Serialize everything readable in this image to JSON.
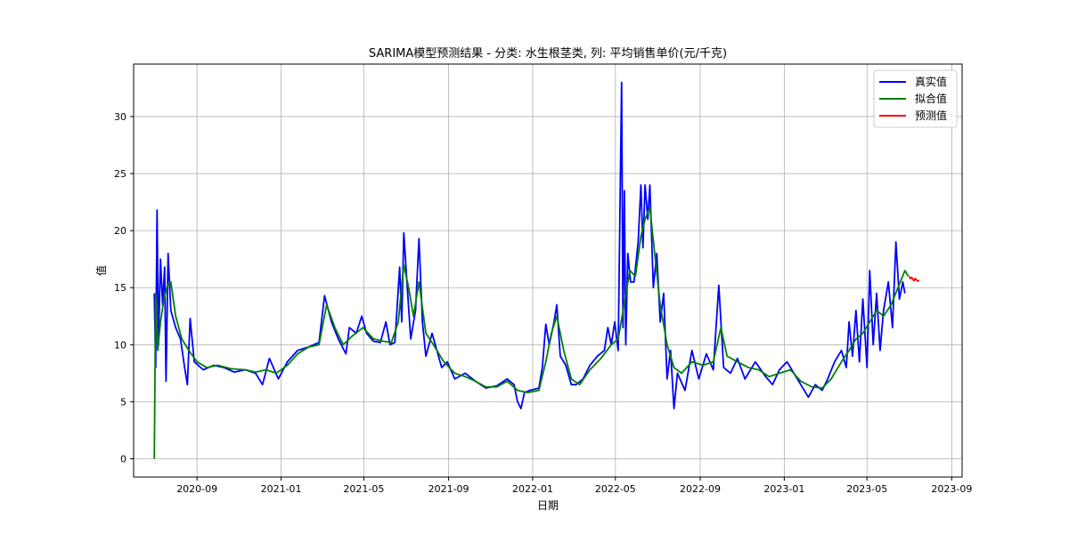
{
  "chart_data": {
    "type": "line",
    "title": "SARIMA模型预测结果 - 分类: 水生根茎类, 列: 平均销售单价(元/千克)",
    "xlabel": "日期",
    "ylabel": "值",
    "x_range": [
      "2020-06-01",
      "2023-09-16"
    ],
    "ylim": [
      -1.6,
      34.6
    ],
    "grid": true,
    "legend_position": "top-right",
    "x_ticks": [
      "2020-09",
      "2021-01",
      "2021-05",
      "2021-09",
      "2022-01",
      "2022-05",
      "2022-09",
      "2023-01",
      "2023-05",
      "2023-09"
    ],
    "y_ticks": [
      0,
      5,
      10,
      15,
      20,
      25,
      30
    ],
    "series": [
      {
        "name": "真实值",
        "color": "#0000ff",
        "points": [
          [
            "2020-07-01",
            14.5
          ],
          [
            "2020-07-03",
            8.0
          ],
          [
            "2020-07-05",
            21.8
          ],
          [
            "2020-07-07",
            10.0
          ],
          [
            "2020-07-10",
            17.5
          ],
          [
            "2020-07-13",
            13.5
          ],
          [
            "2020-07-16",
            16.8
          ],
          [
            "2020-07-18",
            6.8
          ],
          [
            "2020-07-21",
            18.0
          ],
          [
            "2020-07-25",
            13.0
          ],
          [
            "2020-08-01",
            11.5
          ],
          [
            "2020-08-08",
            10.5
          ],
          [
            "2020-08-14",
            8.0
          ],
          [
            "2020-08-18",
            6.5
          ],
          [
            "2020-08-22",
            12.3
          ],
          [
            "2020-08-28",
            8.5
          ],
          [
            "2020-09-10",
            7.8
          ],
          [
            "2020-09-25",
            8.2
          ],
          [
            "2020-10-10",
            8.0
          ],
          [
            "2020-10-25",
            7.6
          ],
          [
            "2020-11-10",
            7.8
          ],
          [
            "2020-11-25",
            7.5
          ],
          [
            "2020-12-05",
            6.5
          ],
          [
            "2020-12-15",
            8.8
          ],
          [
            "2020-12-28",
            7.0
          ],
          [
            "2021-01-10",
            8.5
          ],
          [
            "2021-01-25",
            9.5
          ],
          [
            "2021-02-10",
            9.8
          ],
          [
            "2021-02-25",
            10.2
          ],
          [
            "2021-03-05",
            14.3
          ],
          [
            "2021-03-15",
            12.0
          ],
          [
            "2021-03-25",
            10.5
          ],
          [
            "2021-04-05",
            9.2
          ],
          [
            "2021-04-10",
            11.5
          ],
          [
            "2021-04-20",
            11.0
          ],
          [
            "2021-04-28",
            12.5
          ],
          [
            "2021-05-05",
            11.0
          ],
          [
            "2021-05-15",
            10.3
          ],
          [
            "2021-05-25",
            10.2
          ],
          [
            "2021-06-02",
            12.0
          ],
          [
            "2021-06-08",
            10.0
          ],
          [
            "2021-06-15",
            10.2
          ],
          [
            "2021-06-22",
            16.8
          ],
          [
            "2021-06-25",
            12.0
          ],
          [
            "2021-06-28",
            19.8
          ],
          [
            "2021-07-02",
            16.0
          ],
          [
            "2021-07-08",
            10.5
          ],
          [
            "2021-07-15",
            13.0
          ],
          [
            "2021-07-20",
            19.3
          ],
          [
            "2021-07-25",
            12.0
          ],
          [
            "2021-07-30",
            9.0
          ],
          [
            "2021-08-08",
            11.0
          ],
          [
            "2021-08-15",
            9.5
          ],
          [
            "2021-08-22",
            8.0
          ],
          [
            "2021-08-30",
            8.5
          ],
          [
            "2021-09-10",
            7.0
          ],
          [
            "2021-09-25",
            7.5
          ],
          [
            "2021-10-10",
            6.8
          ],
          [
            "2021-10-25",
            6.2
          ],
          [
            "2021-11-10",
            6.4
          ],
          [
            "2021-11-25",
            7.0
          ],
          [
            "2021-12-05",
            6.5
          ],
          [
            "2021-12-10",
            5.0
          ],
          [
            "2021-12-15",
            4.4
          ],
          [
            "2021-12-20",
            5.8
          ],
          [
            "2021-12-28",
            6.0
          ],
          [
            "2022-01-10",
            6.2
          ],
          [
            "2022-01-15",
            8.0
          ],
          [
            "2022-01-20",
            11.8
          ],
          [
            "2022-01-25",
            10.0
          ],
          [
            "2022-02-01",
            12.0
          ],
          [
            "2022-02-05",
            13.5
          ],
          [
            "2022-02-10",
            9.0
          ],
          [
            "2022-02-18",
            8.2
          ],
          [
            "2022-02-26",
            6.5
          ],
          [
            "2022-03-05",
            6.5
          ],
          [
            "2022-03-15",
            7.0
          ],
          [
            "2022-03-25",
            8.2
          ],
          [
            "2022-04-05",
            9.0
          ],
          [
            "2022-04-15",
            9.5
          ],
          [
            "2022-04-20",
            11.5
          ],
          [
            "2022-04-25",
            10.0
          ],
          [
            "2022-04-30",
            12.0
          ],
          [
            "2022-05-05",
            9.5
          ],
          [
            "2022-05-10",
            33.0
          ],
          [
            "2022-05-12",
            11.5
          ],
          [
            "2022-05-14",
            23.5
          ],
          [
            "2022-05-16",
            10.0
          ],
          [
            "2022-05-19",
            18.0
          ],
          [
            "2022-05-23",
            15.5
          ],
          [
            "2022-05-28",
            15.5
          ],
          [
            "2022-06-03",
            19.0
          ],
          [
            "2022-06-07",
            24.0
          ],
          [
            "2022-06-10",
            18.5
          ],
          [
            "2022-06-13",
            24.0
          ],
          [
            "2022-06-17",
            21.0
          ],
          [
            "2022-06-20",
            24.0
          ],
          [
            "2022-06-25",
            15.0
          ],
          [
            "2022-06-30",
            18.0
          ],
          [
            "2022-07-05",
            12.0
          ],
          [
            "2022-07-10",
            14.5
          ],
          [
            "2022-07-15",
            7.0
          ],
          [
            "2022-07-20",
            9.5
          ],
          [
            "2022-07-25",
            4.4
          ],
          [
            "2022-07-30",
            7.5
          ],
          [
            "2022-08-10",
            6.0
          ],
          [
            "2022-08-20",
            9.5
          ],
          [
            "2022-08-30",
            7.0
          ],
          [
            "2022-09-10",
            9.2
          ],
          [
            "2022-09-20",
            7.8
          ],
          [
            "2022-09-28",
            15.2
          ],
          [
            "2022-10-05",
            8.0
          ],
          [
            "2022-10-15",
            7.5
          ],
          [
            "2022-10-25",
            8.8
          ],
          [
            "2022-11-05",
            7.0
          ],
          [
            "2022-11-20",
            8.5
          ],
          [
            "2022-12-05",
            7.2
          ],
          [
            "2022-12-15",
            6.5
          ],
          [
            "2022-12-25",
            7.8
          ],
          [
            "2023-01-05",
            8.5
          ],
          [
            "2023-01-15",
            7.5
          ],
          [
            "2023-01-25",
            6.5
          ],
          [
            "2023-02-05",
            5.4
          ],
          [
            "2023-02-15",
            6.5
          ],
          [
            "2023-02-25",
            6.0
          ],
          [
            "2023-03-05",
            7.0
          ],
          [
            "2023-03-15",
            8.5
          ],
          [
            "2023-03-25",
            9.5
          ],
          [
            "2023-04-01",
            8.0
          ],
          [
            "2023-04-05",
            12.0
          ],
          [
            "2023-04-10",
            9.0
          ],
          [
            "2023-04-15",
            13.0
          ],
          [
            "2023-04-20",
            8.5
          ],
          [
            "2023-04-25",
            14.0
          ],
          [
            "2023-05-01",
            8.0
          ],
          [
            "2023-05-05",
            16.5
          ],
          [
            "2023-05-10",
            10.0
          ],
          [
            "2023-05-15",
            14.5
          ],
          [
            "2023-05-20",
            9.5
          ],
          [
            "2023-05-25",
            13.0
          ],
          [
            "2023-06-01",
            15.5
          ],
          [
            "2023-06-07",
            11.5
          ],
          [
            "2023-06-12",
            19.0
          ],
          [
            "2023-06-17",
            14.0
          ],
          [
            "2023-06-22",
            15.5
          ],
          [
            "2023-06-25",
            14.5
          ]
        ]
      },
      {
        "name": "拟合值",
        "color": "#008000",
        "points": [
          [
            "2020-07-01",
            0.0
          ],
          [
            "2020-07-03",
            14.5
          ],
          [
            "2020-07-06",
            9.5
          ],
          [
            "2020-07-10",
            12.0
          ],
          [
            "2020-07-15",
            14.0
          ],
          [
            "2020-07-20",
            15.2
          ],
          [
            "2020-07-25",
            15.5
          ],
          [
            "2020-08-01",
            12.5
          ],
          [
            "2020-08-10",
            10.5
          ],
          [
            "2020-08-20",
            9.5
          ],
          [
            "2020-09-01",
            8.5
          ],
          [
            "2020-09-15",
            8.0
          ],
          [
            "2020-10-01",
            8.2
          ],
          [
            "2020-10-20",
            7.9
          ],
          [
            "2020-11-10",
            7.8
          ],
          [
            "2020-11-25",
            7.6
          ],
          [
            "2020-12-10",
            7.8
          ],
          [
            "2020-12-25",
            7.5
          ],
          [
            "2021-01-10",
            8.2
          ],
          [
            "2021-01-25",
            9.2
          ],
          [
            "2021-02-10",
            9.8
          ],
          [
            "2021-02-25",
            10.0
          ],
          [
            "2021-03-08",
            13.5
          ],
          [
            "2021-03-20",
            11.5
          ],
          [
            "2021-04-01",
            10.0
          ],
          [
            "2021-04-15",
            10.8
          ],
          [
            "2021-04-30",
            11.5
          ],
          [
            "2021-05-15",
            10.5
          ],
          [
            "2021-05-30",
            10.3
          ],
          [
            "2021-06-10",
            10.2
          ],
          [
            "2021-06-20",
            12.0
          ],
          [
            "2021-06-28",
            17.0
          ],
          [
            "2021-07-05",
            15.0
          ],
          [
            "2021-07-12",
            12.5
          ],
          [
            "2021-07-20",
            15.5
          ],
          [
            "2021-07-30",
            11.0
          ],
          [
            "2021-08-10",
            10.0
          ],
          [
            "2021-08-25",
            8.5
          ],
          [
            "2021-09-10",
            7.5
          ],
          [
            "2021-09-25",
            7.2
          ],
          [
            "2021-10-10",
            6.8
          ],
          [
            "2021-10-25",
            6.3
          ],
          [
            "2021-11-10",
            6.3
          ],
          [
            "2021-11-25",
            6.8
          ],
          [
            "2021-12-10",
            6.0
          ],
          [
            "2021-12-25",
            5.8
          ],
          [
            "2022-01-10",
            6.0
          ],
          [
            "2022-01-20",
            8.5
          ],
          [
            "2022-01-28",
            11.0
          ],
          [
            "2022-02-05",
            12.5
          ],
          [
            "2022-02-15",
            9.5
          ],
          [
            "2022-02-26",
            7.0
          ],
          [
            "2022-03-10",
            6.5
          ],
          [
            "2022-03-25",
            7.8
          ],
          [
            "2022-04-10",
            8.8
          ],
          [
            "2022-04-25",
            10.0
          ],
          [
            "2022-05-05",
            10.5
          ],
          [
            "2022-05-15",
            14.0
          ],
          [
            "2022-05-22",
            16.5
          ],
          [
            "2022-05-30",
            16.0
          ],
          [
            "2022-06-07",
            19.5
          ],
          [
            "2022-06-13",
            21.0
          ],
          [
            "2022-06-20",
            22.0
          ],
          [
            "2022-06-27",
            18.0
          ],
          [
            "2022-07-05",
            13.5
          ],
          [
            "2022-07-15",
            10.0
          ],
          [
            "2022-07-25",
            8.0
          ],
          [
            "2022-08-05",
            7.5
          ],
          [
            "2022-08-20",
            8.5
          ],
          [
            "2022-09-05",
            8.2
          ],
          [
            "2022-09-20",
            8.5
          ],
          [
            "2022-10-01",
            11.5
          ],
          [
            "2022-10-10",
            9.0
          ],
          [
            "2022-10-25",
            8.5
          ],
          [
            "2022-11-10",
            8.0
          ],
          [
            "2022-11-25",
            7.8
          ],
          [
            "2022-12-10",
            7.2
          ],
          [
            "2022-12-25",
            7.5
          ],
          [
            "2023-01-10",
            7.8
          ],
          [
            "2023-01-25",
            6.8
          ],
          [
            "2023-02-10",
            6.3
          ],
          [
            "2023-02-25",
            6.2
          ],
          [
            "2023-03-10",
            7.0
          ],
          [
            "2023-03-25",
            8.5
          ],
          [
            "2023-04-05",
            9.5
          ],
          [
            "2023-04-15",
            10.5
          ],
          [
            "2023-04-25",
            11.0
          ],
          [
            "2023-05-05",
            12.0
          ],
          [
            "2023-05-15",
            13.0
          ],
          [
            "2023-05-25",
            12.5
          ],
          [
            "2023-06-05",
            13.5
          ],
          [
            "2023-06-15",
            15.0
          ],
          [
            "2023-06-25",
            16.5
          ],
          [
            "2023-06-30",
            16.0
          ]
        ]
      },
      {
        "name": "预测值",
        "color": "#ff0000",
        "points": [
          [
            "2023-07-01",
            16.0
          ],
          [
            "2023-07-03",
            15.8
          ],
          [
            "2023-07-05",
            15.9
          ],
          [
            "2023-07-08",
            15.6
          ],
          [
            "2023-07-10",
            15.8
          ],
          [
            "2023-07-13",
            15.6
          ],
          [
            "2023-07-16",
            15.6
          ]
        ]
      }
    ]
  }
}
